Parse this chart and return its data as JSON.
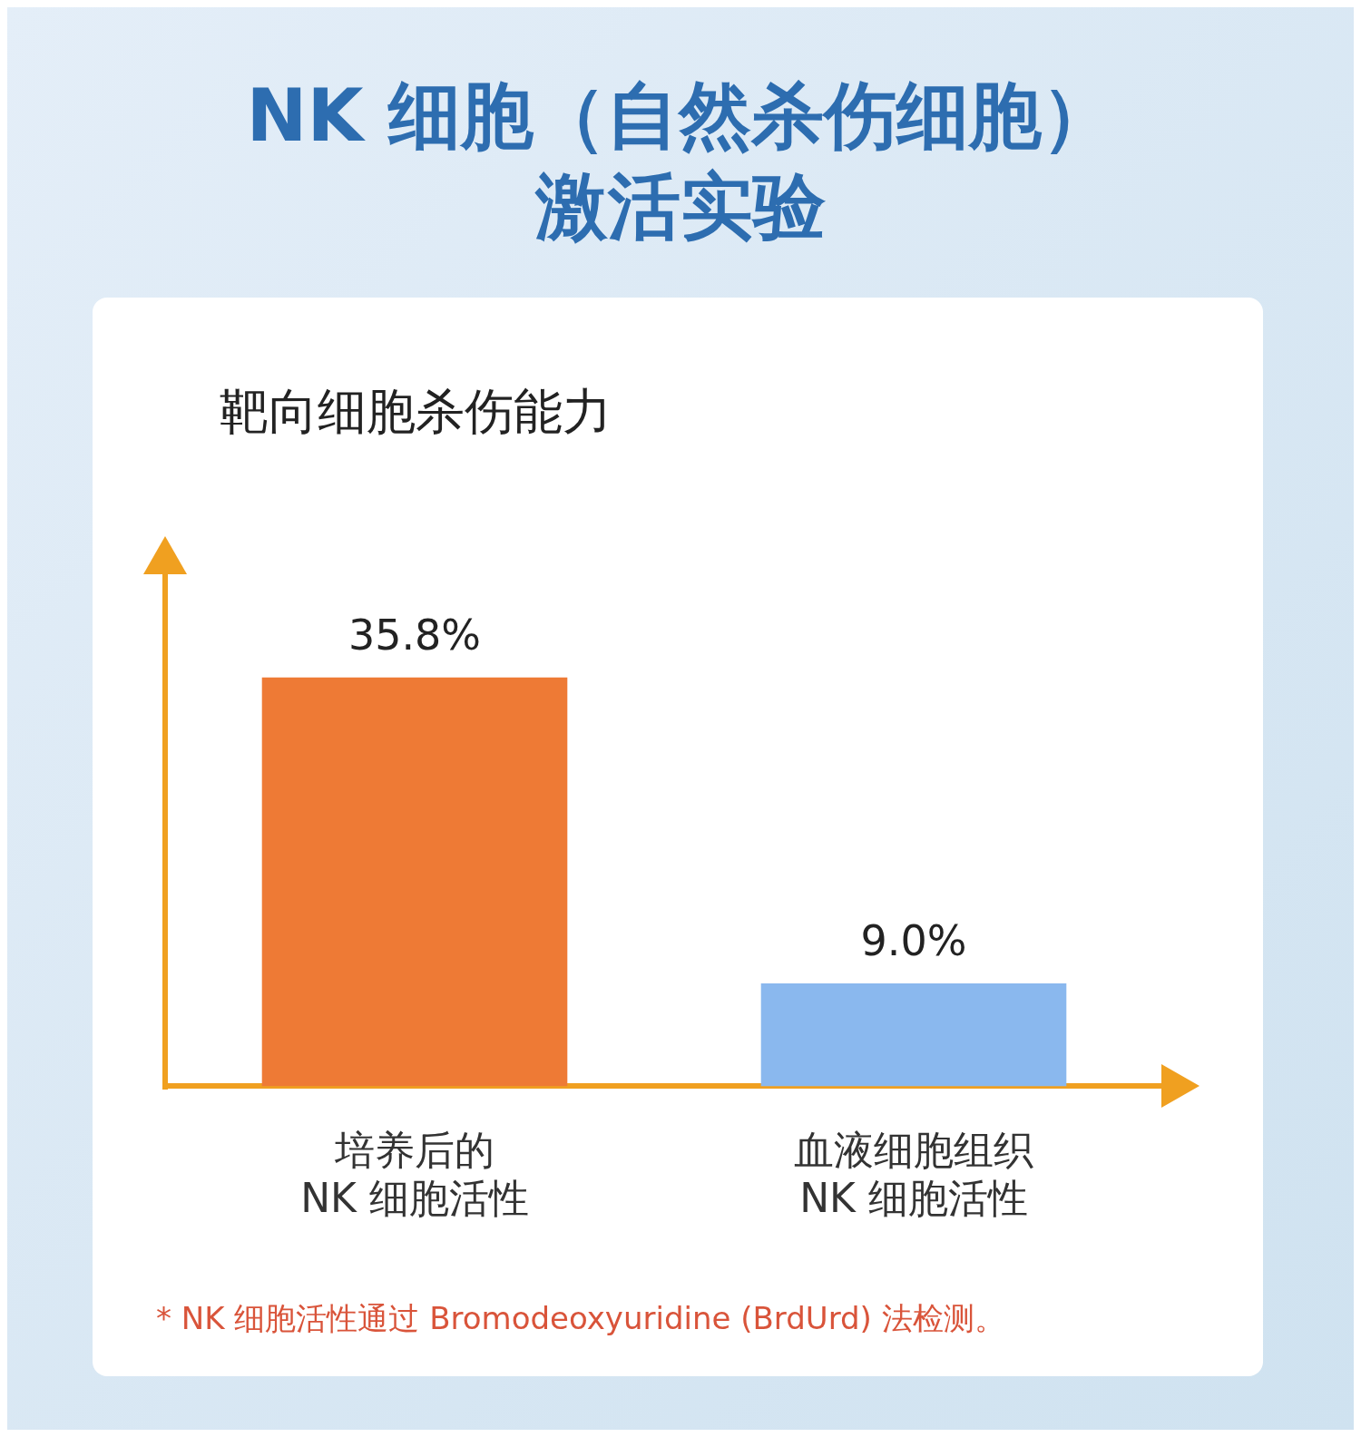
{
  "chart_data": {
    "type": "bar",
    "title": "NK 细胞（自然杀伤细胞）",
    "subtitle": "激活实验",
    "ylabel": "靶向细胞杀伤能力",
    "categories": [
      "培养后的 NK 细胞活性",
      "血液细胞组织 NK 细胞活性"
    ],
    "values": [
      35.8,
      9.0
    ],
    "colors": [
      "#ee7a35",
      "#8ab8ee"
    ],
    "value_labels": [
      "35.8%",
      "9.0%"
    ],
    "annotations": [
      "* NK 细胞活性通过 Bromodeoxyuridine (BrdUrd) 法检测。"
    ]
  }
}
